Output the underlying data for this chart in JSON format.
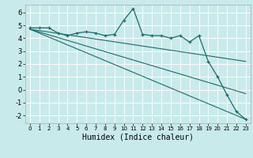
{
  "xlabel": "Humidex (Indice chaleur)",
  "bg_color": "#c8eaea",
  "line_color": "#1a6b6b",
  "grid_color": "#ffffff",
  "xlim": [
    -0.5,
    23.5
  ],
  "ylim": [
    -2.6,
    6.6
  ],
  "xticks": [
    0,
    1,
    2,
    3,
    4,
    5,
    6,
    7,
    8,
    9,
    10,
    11,
    12,
    13,
    14,
    15,
    16,
    17,
    18,
    19,
    20,
    21,
    22,
    23
  ],
  "yticks": [
    -2,
    -1,
    0,
    1,
    2,
    3,
    4,
    5,
    6
  ],
  "line1_x": [
    0,
    1,
    2,
    3,
    4,
    5,
    6,
    7,
    8,
    9,
    10,
    11,
    12,
    13,
    14,
    15,
    16,
    17,
    18,
    19,
    20,
    21,
    22,
    23
  ],
  "line1_y": [
    4.8,
    4.8,
    4.8,
    4.4,
    4.2,
    4.4,
    4.5,
    4.4,
    4.2,
    4.3,
    5.4,
    6.3,
    4.3,
    4.2,
    4.2,
    4.0,
    4.2,
    3.7,
    4.2,
    2.2,
    1.0,
    -0.4,
    -1.7,
    -2.3
  ],
  "line2_x": [
    0,
    23
  ],
  "line2_y": [
    4.7,
    -2.3
  ],
  "line3_x": [
    0,
    23
  ],
  "line3_y": [
    4.7,
    -0.3
  ],
  "line4_x": [
    0,
    23
  ],
  "line4_y": [
    4.7,
    2.2
  ]
}
